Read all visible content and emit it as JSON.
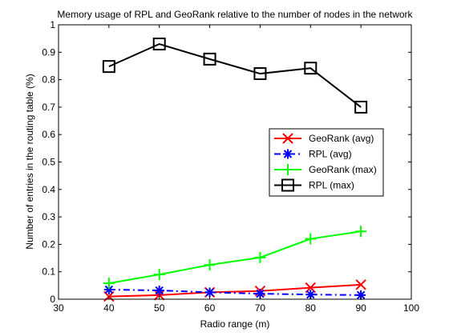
{
  "chart_data": {
    "type": "line",
    "title": "Memory usage of RPL and GeoRank relative to the number of nodes in the network",
    "xlabel": "Radio range (m)",
    "ylabel": "Number of entries in the routing table (%)",
    "xlim": [
      30,
      100
    ],
    "ylim": [
      0,
      1
    ],
    "xticks": [
      30,
      40,
      50,
      60,
      70,
      80,
      90,
      100
    ],
    "yticks": [
      0,
      0.1,
      0.2,
      0.3,
      0.4,
      0.5,
      0.6,
      0.7,
      0.8,
      0.9,
      1
    ],
    "x": [
      40,
      50,
      60,
      70,
      80,
      90
    ],
    "grid": false,
    "legend_position": "right",
    "series": [
      {
        "name": "GeoRank (avg)",
        "color": "#ff0000",
        "line_style": "solid",
        "marker": "x",
        "values": [
          0.01,
          0.015,
          0.025,
          0.03,
          0.042,
          0.053
        ]
      },
      {
        "name": "RPL (avg)",
        "color": "#0000ff",
        "line_style": "dashdot",
        "marker": "asterisk",
        "values": [
          0.035,
          0.032,
          0.025,
          0.02,
          0.017,
          0.015
        ]
      },
      {
        "name": "GeoRank (max)",
        "color": "#00ff00",
        "line_style": "solid",
        "marker": "plus",
        "values": [
          0.058,
          0.09,
          0.125,
          0.152,
          0.22,
          0.247
        ]
      },
      {
        "name": "RPL (max)",
        "color": "#000000",
        "line_style": "solid",
        "marker": "square",
        "values": [
          0.848,
          0.93,
          0.875,
          0.822,
          0.842,
          0.7
        ]
      }
    ]
  }
}
